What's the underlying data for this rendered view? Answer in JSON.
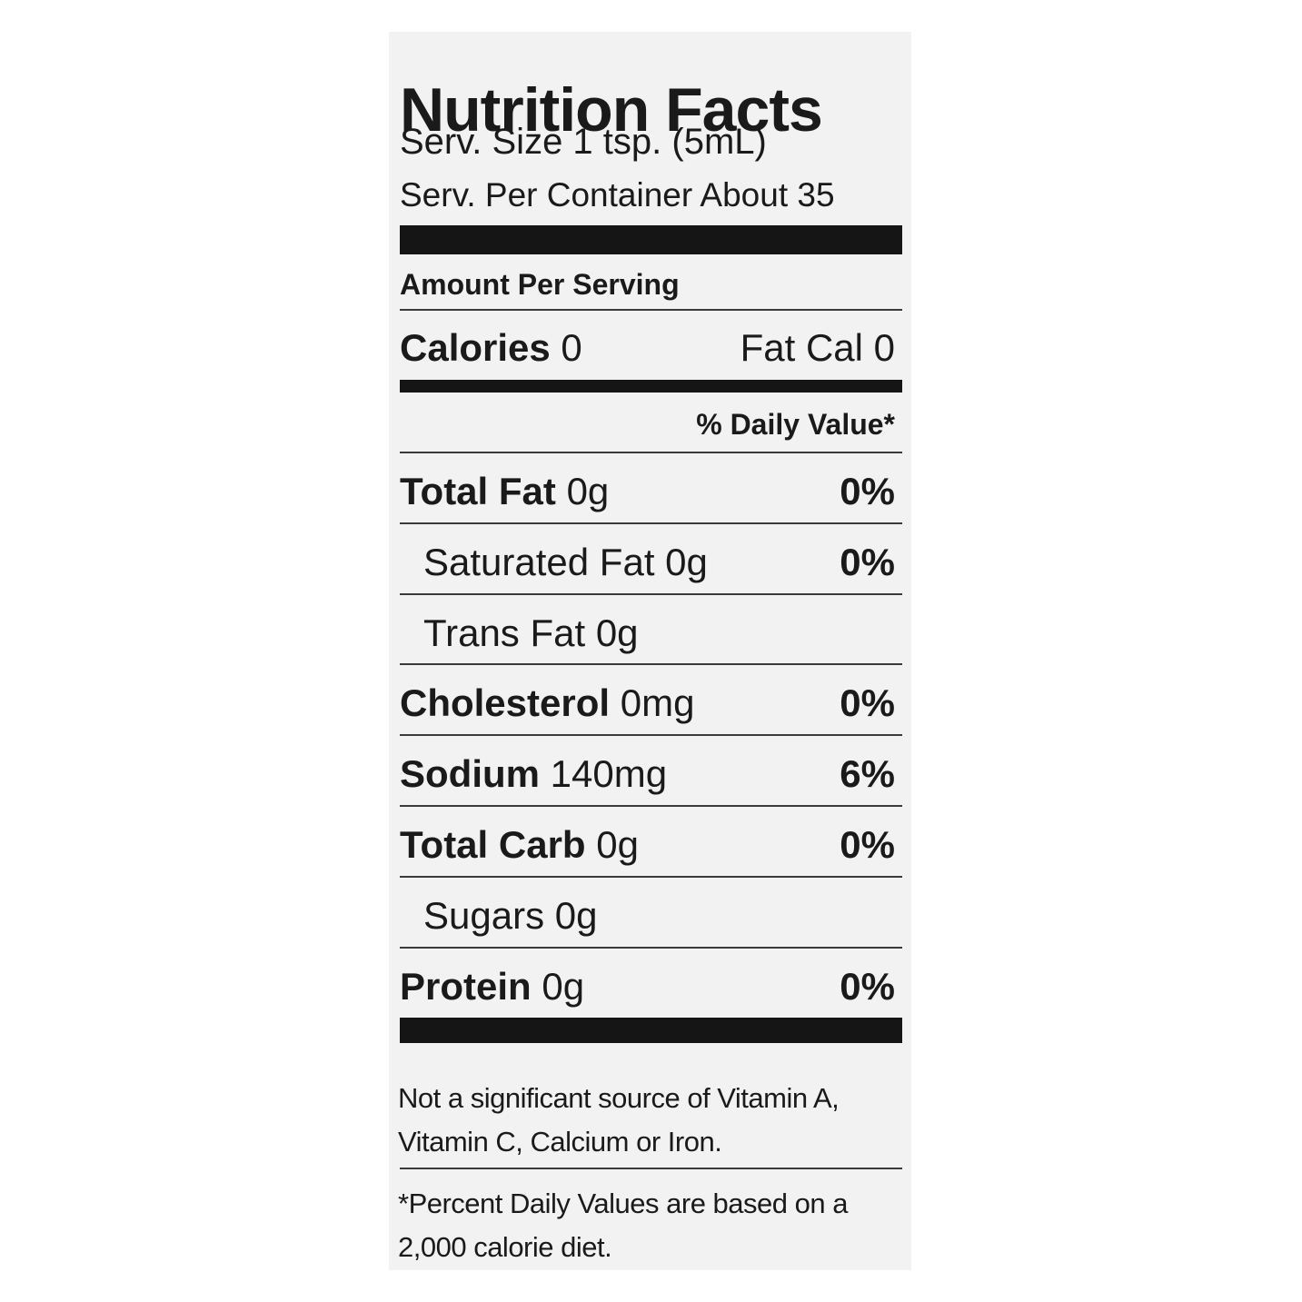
{
  "title": "Nutrition Facts",
  "serving_size": "Serv. Size 1 tsp. (5mL)",
  "servings_per_container": "Serv. Per Container About 35",
  "amount_per_serving": "Amount Per Serving",
  "calories": {
    "label": "Calories",
    "value": "0",
    "fat_calories": "Fat Cal 0"
  },
  "daily_value_header": "% Daily Value*",
  "nutrients": [
    {
      "name": "Total Fat",
      "amount": "0g",
      "dv": "0%",
      "sub": [
        {
          "name": "Saturated Fat",
          "amount": "0g",
          "dv": "0%"
        },
        {
          "name": "Trans Fat",
          "amount": "0g"
        }
      ]
    },
    {
      "name": "Cholesterol",
      "amount": "0mg",
      "dv": "0%"
    },
    {
      "name": "Sodium",
      "amount": "140mg",
      "dv": "6%"
    },
    {
      "name": "Total Carb",
      "amount": "0g",
      "dv": "0%",
      "sub": [
        {
          "name": "Sugars",
          "amount": "0g"
        }
      ]
    },
    {
      "name": "Protein",
      "amount": "0g",
      "dv": "0%"
    }
  ],
  "footnotes": [
    "Not a significant source of Vitamin A, Vitamin C, Calcium or Iron.",
    "*Percent Daily Values are based on a 2,000 calorie diet."
  ]
}
